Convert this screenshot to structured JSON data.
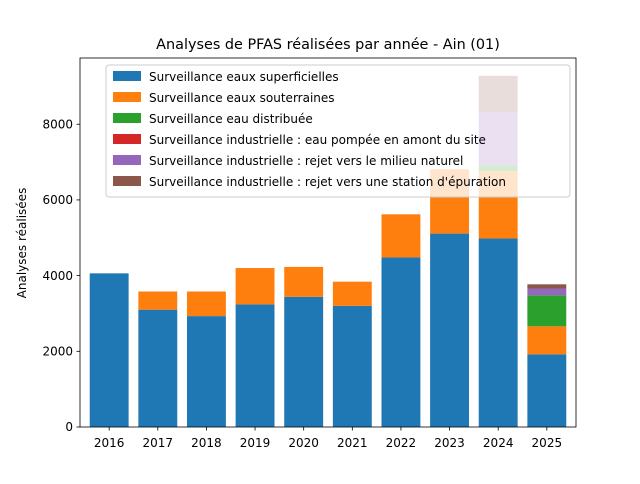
{
  "chart_data": {
    "type": "bar",
    "stacked": true,
    "title": "Analyses de PFAS réalisées par année - Ain (01)",
    "xlabel": "",
    "ylabel": "Analyses réalisées",
    "categories": [
      "2016",
      "2017",
      "2018",
      "2019",
      "2020",
      "2021",
      "2022",
      "2023",
      "2024",
      "2025"
    ],
    "ylim": [
      0,
      9750
    ],
    "yticks": [
      0,
      2000,
      4000,
      6000,
      8000
    ],
    "grid": false,
    "legend_position": "top",
    "series": [
      {
        "name": "Surveillance eaux superficielles",
        "color": "#1f77b4",
        "values": [
          4060,
          3100,
          2930,
          3240,
          3440,
          3200,
          4480,
          5110,
          4980,
          1920
        ]
      },
      {
        "name": "Surveillance eaux souterraines",
        "color": "#ff7f0e",
        "values": [
          0,
          480,
          650,
          960,
          790,
          640,
          1140,
          1700,
          1780,
          740
        ]
      },
      {
        "name": "Surveillance eau distribuée",
        "color": "#2ca02c",
        "values": [
          0,
          0,
          0,
          0,
          0,
          0,
          0,
          0,
          160,
          820
        ]
      },
      {
        "name": "Surveillance industrielle : eau pompée en amont du site",
        "color": "#d62728",
        "values": [
          0,
          0,
          0,
          0,
          0,
          0,
          0,
          0,
          0,
          0
        ]
      },
      {
        "name": "Surveillance industrielle : rejet vers le milieu naturel",
        "color": "#9467bd",
        "values": [
          0,
          0,
          0,
          0,
          0,
          0,
          0,
          0,
          1400,
          180
        ]
      },
      {
        "name": "Surveillance industrielle : rejet vers une station d'épuration",
        "color": "#8c564b",
        "values": [
          0,
          0,
          0,
          0,
          0,
          0,
          0,
          0,
          960,
          110
        ]
      }
    ]
  }
}
